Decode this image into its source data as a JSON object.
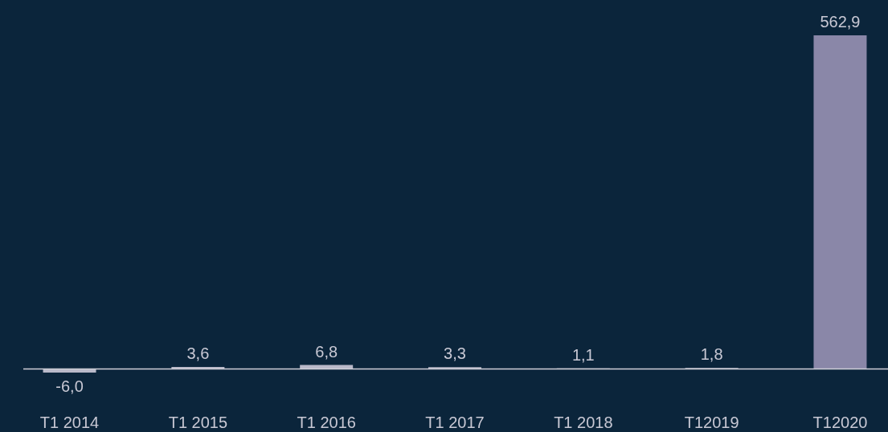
{
  "chart_data": {
    "type": "bar",
    "categories": [
      "T1 2014",
      "T1 2015",
      "T1 2016",
      "T1 2017",
      "T1 2018",
      "T12019",
      "T12020"
    ],
    "values": [
      -6.0,
      3.6,
      6.8,
      3.3,
      1.1,
      1.8,
      562.9
    ],
    "colors": [
      "#b9b9c9",
      "#b9b9c9",
      "#b9b9c9",
      "#b9b9c9",
      "#b9b9c9",
      "#b9b9c9",
      "#8a87a8"
    ],
    "value_labels": [
      "-6,0",
      "3,6",
      "6,8",
      "3,3",
      "1,1",
      "1,8",
      "562,9"
    ],
    "grid": false,
    "tick_labels": "x"
  }
}
